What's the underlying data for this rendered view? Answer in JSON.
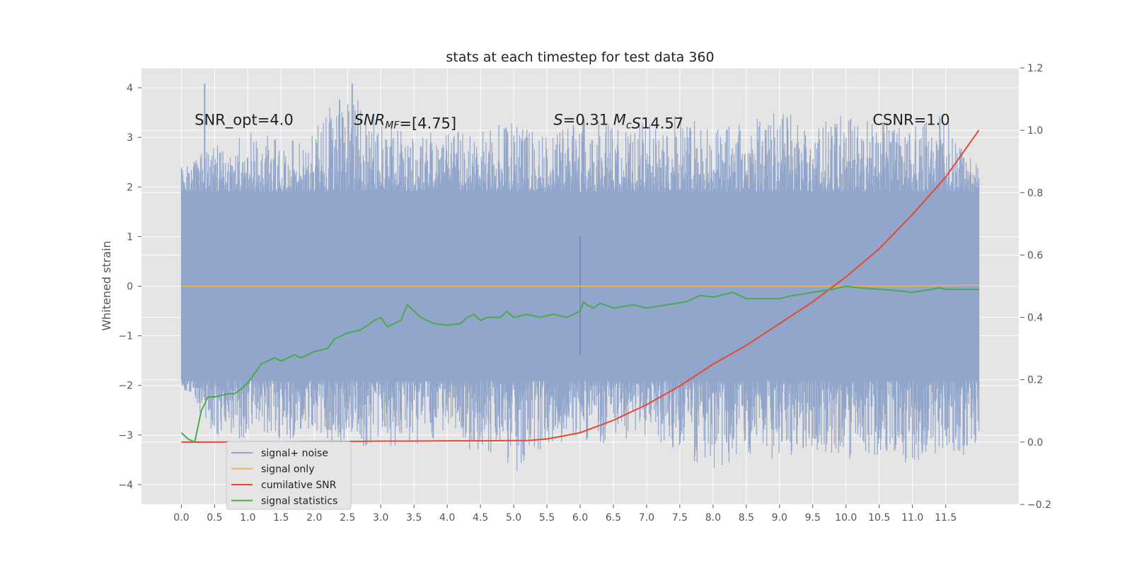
{
  "chart_data": {
    "type": "line",
    "title": "stats at each timestep for test data 360",
    "ylabel": "Whitened strain",
    "xlabel": "",
    "xlim": [
      -0.6,
      12.6
    ],
    "ylim": [
      -4.4,
      4.4
    ],
    "y2lim": [
      -0.2,
      1.2
    ],
    "grid": true,
    "x_ticks": [
      0.0,
      0.5,
      1.0,
      1.5,
      2.0,
      2.5,
      3.0,
      3.5,
      4.0,
      4.5,
      5.0,
      5.5,
      6.0,
      6.5,
      7.0,
      7.5,
      8.0,
      8.5,
      9.0,
      9.5,
      10.0,
      10.5,
      11.0,
      11.5
    ],
    "x_tick_labels": [
      "0.0",
      "0.5",
      "1.0",
      "1.5",
      "2.0",
      "2.5",
      "3.0",
      "3.5",
      "4.0",
      "4.5",
      "5.0",
      "5.5",
      "6.0",
      "6.5",
      "7.0",
      "7.5",
      "8.0",
      "8.5",
      "9.0",
      "9.5",
      "10.0",
      "10.5",
      "11.0",
      "11.5"
    ],
    "y_ticks": [
      -4,
      -3,
      -2,
      -1,
      0,
      1,
      2,
      3,
      4
    ],
    "y_tick_labels": [
      "−4",
      "−3",
      "−2",
      "−1",
      "0",
      "1",
      "2",
      "3",
      "4"
    ],
    "y2_ticks": [
      -0.2,
      0.0,
      0.2,
      0.4,
      0.6,
      0.8,
      1.0,
      1.2
    ],
    "y2_tick_labels": [
      "−0.2",
      "0.0",
      "0.2",
      "0.4",
      "0.6",
      "0.8",
      "1.0",
      "1.2"
    ],
    "legend_placement": "lower-left",
    "noise_envelope": {
      "x": [
        0,
        0.5,
        1.0,
        1.5,
        2.0,
        2.5,
        3.0,
        3.5,
        4.0,
        4.5,
        5.0,
        5.5,
        6.0,
        6.5,
        7.0,
        7.5,
        8.0,
        8.5,
        9.0,
        9.5,
        10.0,
        10.5,
        11.0,
        11.5,
        12.0
      ],
      "upper": [
        2.4,
        2.9,
        3.2,
        3.0,
        3.2,
        4.1,
        3.3,
        3.2,
        3.1,
        3.2,
        3.3,
        3.0,
        3.5,
        3.3,
        3.3,
        3.5,
        3.2,
        3.4,
        3.6,
        3.2,
        3.5,
        3.4,
        3.2,
        3.5,
        2.4
      ],
      "lower": [
        -2.0,
        -3.0,
        -3.1,
        -3.1,
        -3.0,
        -3.3,
        -3.2,
        -3.3,
        -3.0,
        -3.5,
        -3.8,
        -3.2,
        -3.1,
        -3.2,
        -3.0,
        -3.4,
        -3.7,
        -3.4,
        -3.6,
        -3.3,
        -3.5,
        -3.4,
        -3.6,
        -3.3,
        -3.5
      ],
      "spike_x": [
        0.35,
        2.43,
        2.57
      ],
      "spike_y": [
        4.08,
        3.4,
        4.08
      ]
    },
    "series": [
      {
        "name": "signal+ noise",
        "color": "#92A5CA",
        "axis": "left",
        "style": "dense-noise"
      },
      {
        "name": "signal only",
        "color": "#E9B75F",
        "axis": "left",
        "x": [
          0,
          1,
          2,
          3,
          4,
          5,
          6,
          7,
          8,
          9,
          10,
          11,
          12
        ],
        "values": [
          0,
          0,
          0,
          0,
          0,
          0,
          0,
          0,
          0,
          0,
          0,
          0,
          0.02
        ]
      },
      {
        "name": "cumilative SNR",
        "color": "#E24A33",
        "axis": "right",
        "x": [
          0,
          0.5,
          1,
          1.5,
          2,
          2.5,
          3,
          3.5,
          4,
          4.5,
          5,
          5.2,
          5.5,
          6,
          6.5,
          7,
          7.5,
          8,
          8.5,
          9,
          9.5,
          10,
          10.5,
          11,
          11.5,
          12
        ],
        "values": [
          0.0,
          0.0,
          0.001,
          0.001,
          0.002,
          0.002,
          0.003,
          0.003,
          0.004,
          0.004,
          0.005,
          0.005,
          0.01,
          0.03,
          0.07,
          0.12,
          0.18,
          0.25,
          0.31,
          0.38,
          0.45,
          0.53,
          0.62,
          0.73,
          0.85,
          1.0
        ]
      },
      {
        "name": "signal statistics",
        "color": "#4BAA4B",
        "axis": "right",
        "x": [
          0,
          0.1,
          0.2,
          0.3,
          0.4,
          0.5,
          0.6,
          0.7,
          0.8,
          0.9,
          1.0,
          1.1,
          1.2,
          1.3,
          1.4,
          1.5,
          1.6,
          1.7,
          1.8,
          2.0,
          2.2,
          2.3,
          2.5,
          2.7,
          2.9,
          3.0,
          3.1,
          3.2,
          3.3,
          3.4,
          3.45,
          3.6,
          3.8,
          4.0,
          4.2,
          4.3,
          4.4,
          4.5,
          4.6,
          4.8,
          4.9,
          5.0,
          5.2,
          5.4,
          5.6,
          5.8,
          6.0,
          6.05,
          6.1,
          6.2,
          6.3,
          6.5,
          6.8,
          7.0,
          7.3,
          7.6,
          7.7,
          7.8,
          8.0,
          8.1,
          8.3,
          8.5,
          8.8,
          9.0,
          9.2,
          9.5,
          9.8,
          10.0,
          10.2,
          10.5,
          10.8,
          11.0,
          11.3,
          11.4,
          11.5,
          12.0
        ],
        "values": [
          0.03,
          0.01,
          0.0,
          0.1,
          0.145,
          0.145,
          0.15,
          0.155,
          0.155,
          0.17,
          0.19,
          0.22,
          0.25,
          0.26,
          0.27,
          0.26,
          0.27,
          0.28,
          0.27,
          0.29,
          0.3,
          0.33,
          0.35,
          0.36,
          0.39,
          0.4,
          0.37,
          0.38,
          0.39,
          0.44,
          0.43,
          0.4,
          0.38,
          0.375,
          0.38,
          0.4,
          0.41,
          0.39,
          0.4,
          0.4,
          0.42,
          0.4,
          0.41,
          0.4,
          0.41,
          0.4,
          0.42,
          0.45,
          0.44,
          0.43,
          0.445,
          0.43,
          0.44,
          0.43,
          0.44,
          0.45,
          0.46,
          0.47,
          0.465,
          0.47,
          0.48,
          0.46,
          0.46,
          0.46,
          0.47,
          0.48,
          0.49,
          0.5,
          0.495,
          0.49,
          0.485,
          0.48,
          0.49,
          0.495,
          0.49,
          0.49
        ]
      }
    ],
    "annotations": [
      {
        "id": "snr-opt",
        "text": "SNR_opt=4.0",
        "x": 0.2,
        "y": 3.25
      },
      {
        "id": "snr-mf",
        "text": "SNR_MF=[4.75]",
        "x": 2.6,
        "y": 3.25
      },
      {
        "id": "s-mc",
        "text": "S=0.31   M_c=14.57",
        "x": 5.6,
        "y": 3.25
      },
      {
        "id": "csnr",
        "text": "CSNR=1.0",
        "x": 10.4,
        "y": 3.25
      }
    ]
  }
}
